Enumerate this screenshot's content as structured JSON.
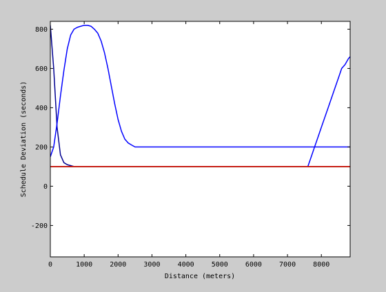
{
  "colors": {
    "figure_background": "#cccccc",
    "axes_background": "#ffffff",
    "axes_line": "#000000",
    "colormap": [
      "#000090",
      "#0000ff",
      "#0080ff",
      "#00ccff",
      "#40ffbf",
      "#ffff00",
      "#ff8000",
      "#ff2000",
      "#d00000",
      "#900000"
    ]
  },
  "chart_data": {
    "type": "line",
    "title": "",
    "xlabel": "Distance (meters)",
    "ylabel": "Schedule Deviation (seconds)",
    "xlim": [
      0,
      8850
    ],
    "ylim": [
      -360,
      840
    ],
    "xticks": [
      0,
      1000,
      2000,
      3000,
      4000,
      5000,
      6000,
      7000,
      8000
    ],
    "yticks": [
      -200,
      0,
      200,
      400,
      600,
      800
    ],
    "grid": false,
    "legend": "none",
    "x": [
      0,
      100,
      200,
      300,
      400,
      500,
      600,
      700,
      800,
      900,
      1000,
      1100,
      1200,
      1300,
      1400,
      1500,
      1600,
      1700,
      1800,
      1900,
      2000,
      2100,
      2200,
      2300,
      2400,
      2500,
      2600,
      2700,
      2800,
      2900,
      3000,
      3100,
      3200,
      3300,
      3400,
      3500,
      3600,
      3700,
      3800,
      3900,
      4000,
      4100,
      4200,
      4300,
      4400,
      4500,
      4600,
      4700,
      4800,
      4900,
      5000,
      5100,
      5200,
      5300,
      5400,
      5500,
      5600,
      5700,
      5800,
      5900,
      6000,
      6100,
      6200,
      6300,
      6400,
      6500,
      6600,
      6700,
      6800,
      6900,
      7000,
      7100,
      7200,
      7300,
      7400,
      7500,
      7600,
      7700,
      7800,
      7900,
      8000,
      8100,
      8200,
      8300,
      8400,
      8500,
      8600,
      8700,
      8800,
      8850
    ],
    "series": [
      {
        "color": "#000090",
        "values": [
          820,
          600,
          300,
          160,
          120,
          110,
          105,
          100,
          100,
          100,
          100,
          100,
          100,
          100,
          100,
          100,
          100,
          100,
          100,
          100,
          100,
          100,
          100,
          100,
          100,
          100,
          100,
          100,
          100,
          100,
          100,
          100,
          100,
          100,
          100,
          100,
          100,
          100,
          100,
          100,
          100,
          100,
          100,
          100,
          100,
          100,
          100,
          100,
          100,
          100,
          100,
          100,
          100,
          100,
          100,
          100,
          100,
          100,
          100,
          100,
          100,
          100,
          100,
          100,
          100,
          100,
          100,
          100,
          100,
          100,
          100,
          100,
          100,
          100,
          100,
          100,
          100,
          100,
          100,
          100,
          100,
          100,
          100,
          100,
          100,
          100,
          100,
          100,
          100,
          100
        ]
      },
      {
        "color": "#0000ff",
        "values": [
          150,
          200,
          320,
          460,
          590,
          700,
          770,
          800,
          810,
          815,
          820,
          820,
          815,
          800,
          780,
          740,
          680,
          600,
          510,
          420,
          340,
          280,
          240,
          220,
          210,
          200,
          200,
          200,
          200,
          200,
          200,
          200,
          200,
          200,
          200,
          200,
          200,
          200,
          200,
          200,
          200,
          200,
          200,
          200,
          200,
          200,
          200,
          200,
          200,
          200,
          200,
          200,
          200,
          200,
          200,
          200,
          200,
          200,
          200,
          200,
          200,
          200,
          200,
          200,
          200,
          200,
          200,
          200,
          200,
          200,
          200,
          200,
          200,
          200,
          200,
          200,
          200,
          200,
          200,
          200,
          200,
          200,
          200,
          200,
          200,
          200,
          200,
          200,
          200,
          200
        ]
      },
      {
        "color": "#0000ff",
        "values": [
          100,
          100,
          100,
          100,
          100,
          100,
          100,
          100,
          100,
          100,
          100,
          100,
          100,
          100,
          100,
          100,
          100,
          100,
          100,
          100,
          100,
          100,
          100,
          100,
          100,
          100,
          100,
          100,
          100,
          100,
          100,
          100,
          100,
          100,
          100,
          100,
          100,
          100,
          100,
          100,
          100,
          100,
          100,
          100,
          100,
          100,
          100,
          100,
          100,
          100,
          100,
          100,
          100,
          100,
          100,
          100,
          100,
          100,
          100,
          100,
          100,
          100,
          100,
          100,
          100,
          100,
          100,
          100,
          100,
          100,
          100,
          100,
          100,
          100,
          100,
          100,
          100,
          150,
          200,
          250,
          300,
          350,
          400,
          450,
          500,
          550,
          600,
          620,
          650,
          660
        ]
      },
      {
        "color": "#0080ff",
        "values": [
          100,
          100,
          100,
          100,
          100,
          100,
          100,
          100,
          100,
          100,
          100,
          100,
          100,
          100,
          100,
          100,
          100,
          100,
          100,
          100,
          100,
          100,
          100,
          100,
          100,
          100,
          100,
          100,
          100,
          100,
          100,
          100,
          100,
          100,
          100,
          100,
          100,
          100,
          100,
          100,
          100,
          100,
          100,
          100,
          100,
          100,
          100,
          100,
          100,
          100,
          100,
          100,
          100,
          100,
          100,
          100,
          100,
          100,
          100,
          100,
          100,
          100,
          100,
          100,
          100,
          100,
          100,
          100,
          100,
          100,
          100,
          100,
          100,
          100,
          100,
          100,
          100,
          100,
          100,
          100,
          100,
          100,
          100,
          100,
          100,
          100,
          100,
          100,
          100,
          100
        ]
      },
      {
        "color": "#00ccff",
        "values": [
          100,
          100,
          100,
          100,
          100,
          100,
          100,
          100,
          100,
          100,
          100,
          100,
          100,
          100,
          100,
          100,
          100,
          100,
          100,
          100,
          100,
          100,
          100,
          100,
          100,
          100,
          100,
          100,
          100,
          100,
          100,
          100,
          100,
          100,
          100,
          100,
          100,
          100,
          100,
          100,
          100,
          100,
          100,
          100,
          100,
          100,
          100,
          100,
          100,
          100,
          100,
          100,
          100,
          100,
          100,
          100,
          100,
          100,
          100,
          100,
          100,
          100,
          100,
          100,
          100,
          100,
          100,
          100,
          100,
          100,
          100,
          100,
          100,
          100,
          100,
          100,
          100,
          100,
          100,
          100,
          100,
          100,
          100,
          100,
          100,
          100,
          100,
          100,
          100,
          100
        ]
      },
      {
        "color": "#40ffbf",
        "values": [
          100,
          100,
          100,
          100,
          100,
          100,
          100,
          100,
          100,
          100,
          100,
          100,
          100,
          100,
          100,
          100,
          100,
          100,
          100,
          100,
          100,
          100,
          100,
          100,
          100,
          100,
          100,
          100,
          100,
          100,
          100,
          100,
          100,
          100,
          100,
          100,
          100,
          100,
          100,
          100,
          100,
          100,
          100,
          100,
          100,
          100,
          100,
          100,
          100,
          100,
          100,
          100,
          100,
          100,
          100,
          100,
          100,
          100,
          100,
          100,
          100,
          100,
          100,
          100,
          100,
          100,
          100,
          100,
          100,
          100,
          100,
          100,
          100,
          100,
          100,
          100,
          100,
          100,
          100,
          100,
          100,
          100,
          100,
          100,
          100,
          100,
          100,
          100,
          100,
          100
        ]
      },
      {
        "color": "#ffff00",
        "values": [
          100,
          100,
          100,
          100,
          100,
          100,
          100,
          100,
          100,
          100,
          100,
          100,
          100,
          100,
          100,
          100,
          100,
          100,
          100,
          100,
          100,
          100,
          100,
          100,
          100,
          100,
          100,
          100,
          100,
          100,
          100,
          100,
          100,
          100,
          100,
          100,
          100,
          100,
          100,
          100,
          100,
          100,
          100,
          100,
          100,
          100,
          100,
          100,
          100,
          100,
          100,
          100,
          100,
          100,
          100,
          100,
          100,
          100,
          100,
          100,
          100,
          100,
          100,
          100,
          100,
          100,
          100,
          100,
          100,
          100,
          100,
          100,
          100,
          100,
          100,
          100,
          100,
          100,
          100,
          100,
          100,
          100,
          100,
          100,
          100,
          100,
          100,
          100,
          100,
          100
        ]
      },
      {
        "color": "#ff8000",
        "values": [
          100,
          100,
          100,
          100,
          100,
          100,
          100,
          100,
          100,
          100,
          100,
          100,
          100,
          100,
          100,
          100,
          100,
          100,
          100,
          100,
          100,
          100,
          100,
          100,
          100,
          100,
          100,
          100,
          100,
          100,
          100,
          100,
          100,
          100,
          100,
          100,
          100,
          100,
          100,
          100,
          100,
          100,
          100,
          100,
          100,
          100,
          100,
          100,
          100,
          100,
          100,
          100,
          100,
          100,
          100,
          100,
          100,
          100,
          100,
          100,
          100,
          100,
          100,
          100,
          100,
          100,
          100,
          100,
          100,
          100,
          100,
          100,
          100,
          100,
          100,
          100,
          100,
          100,
          100,
          100,
          100,
          100,
          100,
          100,
          100,
          100,
          100,
          100,
          100,
          100
        ]
      },
      {
        "color": "#900000",
        "values": [
          100,
          100,
          100,
          100,
          100,
          100,
          100,
          100,
          100,
          100,
          100,
          100,
          100,
          100,
          100,
          100,
          100,
          100,
          100,
          100,
          100,
          100,
          100,
          100,
          100,
          100,
          100,
          100,
          100,
          100,
          100,
          100,
          100,
          100,
          100,
          100,
          100,
          100,
          100,
          100,
          100,
          100,
          100,
          100,
          100,
          100,
          100,
          100,
          100,
          100,
          100,
          100,
          100,
          100,
          100,
          100,
          100,
          100,
          100,
          100,
          100,
          100,
          100,
          100,
          100,
          100,
          100,
          100,
          100,
          100,
          100,
          100,
          100,
          100,
          100,
          100,
          100,
          100,
          100,
          100,
          100,
          100,
          100,
          100,
          100,
          100,
          100,
          100,
          100,
          100
        ]
      },
      {
        "color": "#d00000",
        "values": [
          100,
          100,
          100,
          100,
          100,
          100,
          100,
          100,
          100,
          100,
          100,
          100,
          100,
          100,
          100,
          100,
          100,
          100,
          100,
          100,
          100,
          100,
          100,
          100,
          100,
          100,
          100,
          100,
          100,
          100,
          100,
          100,
          100,
          100,
          100,
          100,
          100,
          100,
          100,
          100,
          100,
          100,
          100,
          100,
          100,
          100,
          100,
          100,
          100,
          100,
          100,
          100,
          100,
          100,
          100,
          100,
          100,
          100,
          100,
          100,
          100,
          100,
          100,
          100,
          100,
          100,
          100,
          100,
          100,
          100,
          100,
          100,
          100,
          100,
          100,
          100,
          100,
          100,
          100,
          100,
          100,
          100,
          100,
          100,
          100,
          100,
          100,
          100,
          100,
          100
        ]
      }
    ]
  }
}
